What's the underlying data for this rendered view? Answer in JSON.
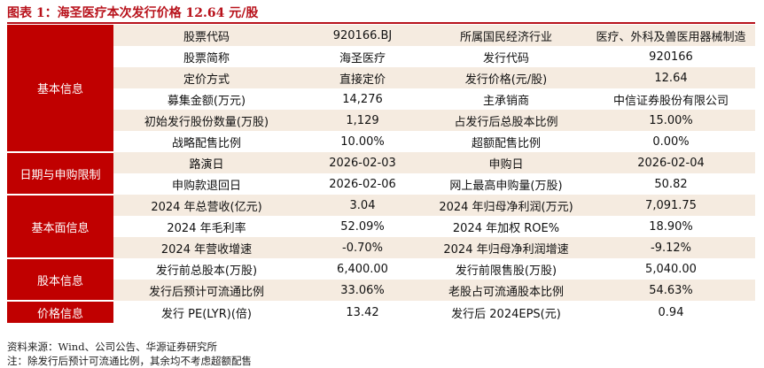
{
  "title": "图表 1：海圣医疗本次发行价格 12.64 元/股",
  "table": {
    "groups": [
      {
        "label": "基本信息",
        "rows": [
          [
            "股票代码",
            "920166.BJ",
            "所属国民经济行业",
            "医疗、外科及兽医用器械制造"
          ],
          [
            "股票简称",
            "海圣医疗",
            "发行代码",
            "920166"
          ],
          [
            "定价方式",
            "直接定价",
            "发行价格(元/股)",
            "12.64"
          ],
          [
            "募集金额(万元)",
            "14,276",
            "主承销商",
            "中信证券股份有限公司"
          ],
          [
            "初始发行股份数量(万股)",
            "1,129",
            "占发行后总股本比例",
            "15.00%"
          ],
          [
            "战略配售比例",
            "10.00%",
            "超额配售比例",
            "0.00%"
          ]
        ]
      },
      {
        "label": "日期与申购限制",
        "rows": [
          [
            "路演日",
            "2026-02-03",
            "申购日",
            "2026-02-04"
          ],
          [
            "申购款退回日",
            "2026-02-06",
            "网上最高申购量(万股)",
            "50.82"
          ]
        ]
      },
      {
        "label": "基本面信息",
        "rows": [
          [
            "2024 年总营收(亿元)",
            "3.04",
            "2024 年归母净利润(万元)",
            "7,091.75"
          ],
          [
            "2024 年毛利率",
            "52.09%",
            "2024 年加权 ROE%",
            "18.90%"
          ],
          [
            "2024 年营收增速",
            "-0.70%",
            "2024 年归母净利润增速",
            "-9.12%"
          ]
        ]
      },
      {
        "label": "股本信息",
        "rows": [
          [
            "发行前总股本(万股)",
            "6,400.00",
            "发行前限售股(万股)",
            "5,040.00"
          ],
          [
            "发行后预计可流通比例",
            "33.06%",
            "老股占可流通股本比例",
            "54.63%"
          ]
        ]
      },
      {
        "label": "价格信息",
        "rows": [
          [
            "发行 PE(LYR)(倍)",
            "13.42",
            "发行后 2024EPS(元)",
            "0.94"
          ]
        ]
      }
    ]
  },
  "footer": {
    "source": "资料来源：Wind、公司公告、华源证券研究所",
    "note": "注：除发行后预计可流通比例，其余均不考虑超额配售"
  }
}
